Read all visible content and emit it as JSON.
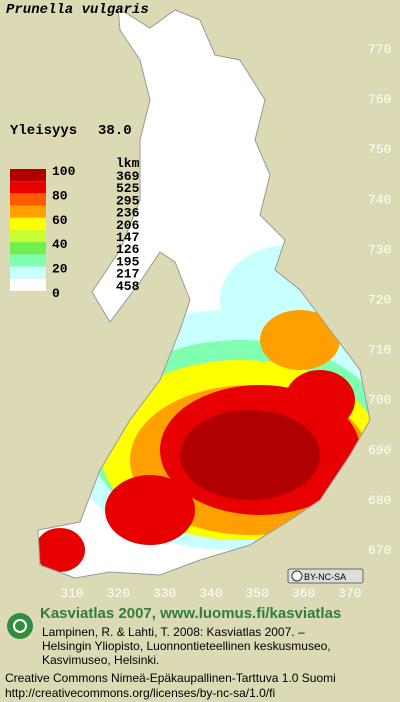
{
  "title": "Prunella vulgaris",
  "frequency_label": "Yleisyys",
  "frequency_value": "38.0",
  "legend": {
    "header": "lkm",
    "scale_labels": [
      "100",
      "80",
      "60",
      "40",
      "20",
      "0"
    ],
    "counts": [
      369,
      525,
      295,
      236,
      206,
      147,
      126,
      195,
      217,
      458
    ],
    "colors": [
      "#b00000",
      "#e80000",
      "#ff5a00",
      "#ffa000",
      "#ffff00",
      "#c8ff30",
      "#70f050",
      "#80ffb0",
      "#c8ffff",
      "#ffffff"
    ]
  },
  "y_ticks": [
    "770",
    "760",
    "750",
    "740",
    "730",
    "720",
    "710",
    "700",
    "690",
    "680",
    "670"
  ],
  "x_ticks": [
    "310",
    "320",
    "330",
    "340",
    "350",
    "360",
    "370"
  ],
  "license_badge": "BY-NC-SA",
  "footer": {
    "heading": "Kasviatlas 2007, www.luomus.fi/kasviatlas",
    "citation": [
      "Lampinen, R. & Lahti, T. 2008: Kasviatlas 2007. –",
      "Helsingin Yliopisto, Luonnontieteellinen keskusmuseo,",
      "Kasvimuseo, Helsinki."
    ],
    "license": "Creative Commons Nimeä-Epäkaupallinen-Tarttuva 1.0 Suomi",
    "license_url": "http://creativecommons.org/licenses/by-nc-sa/1.0/fi"
  }
}
